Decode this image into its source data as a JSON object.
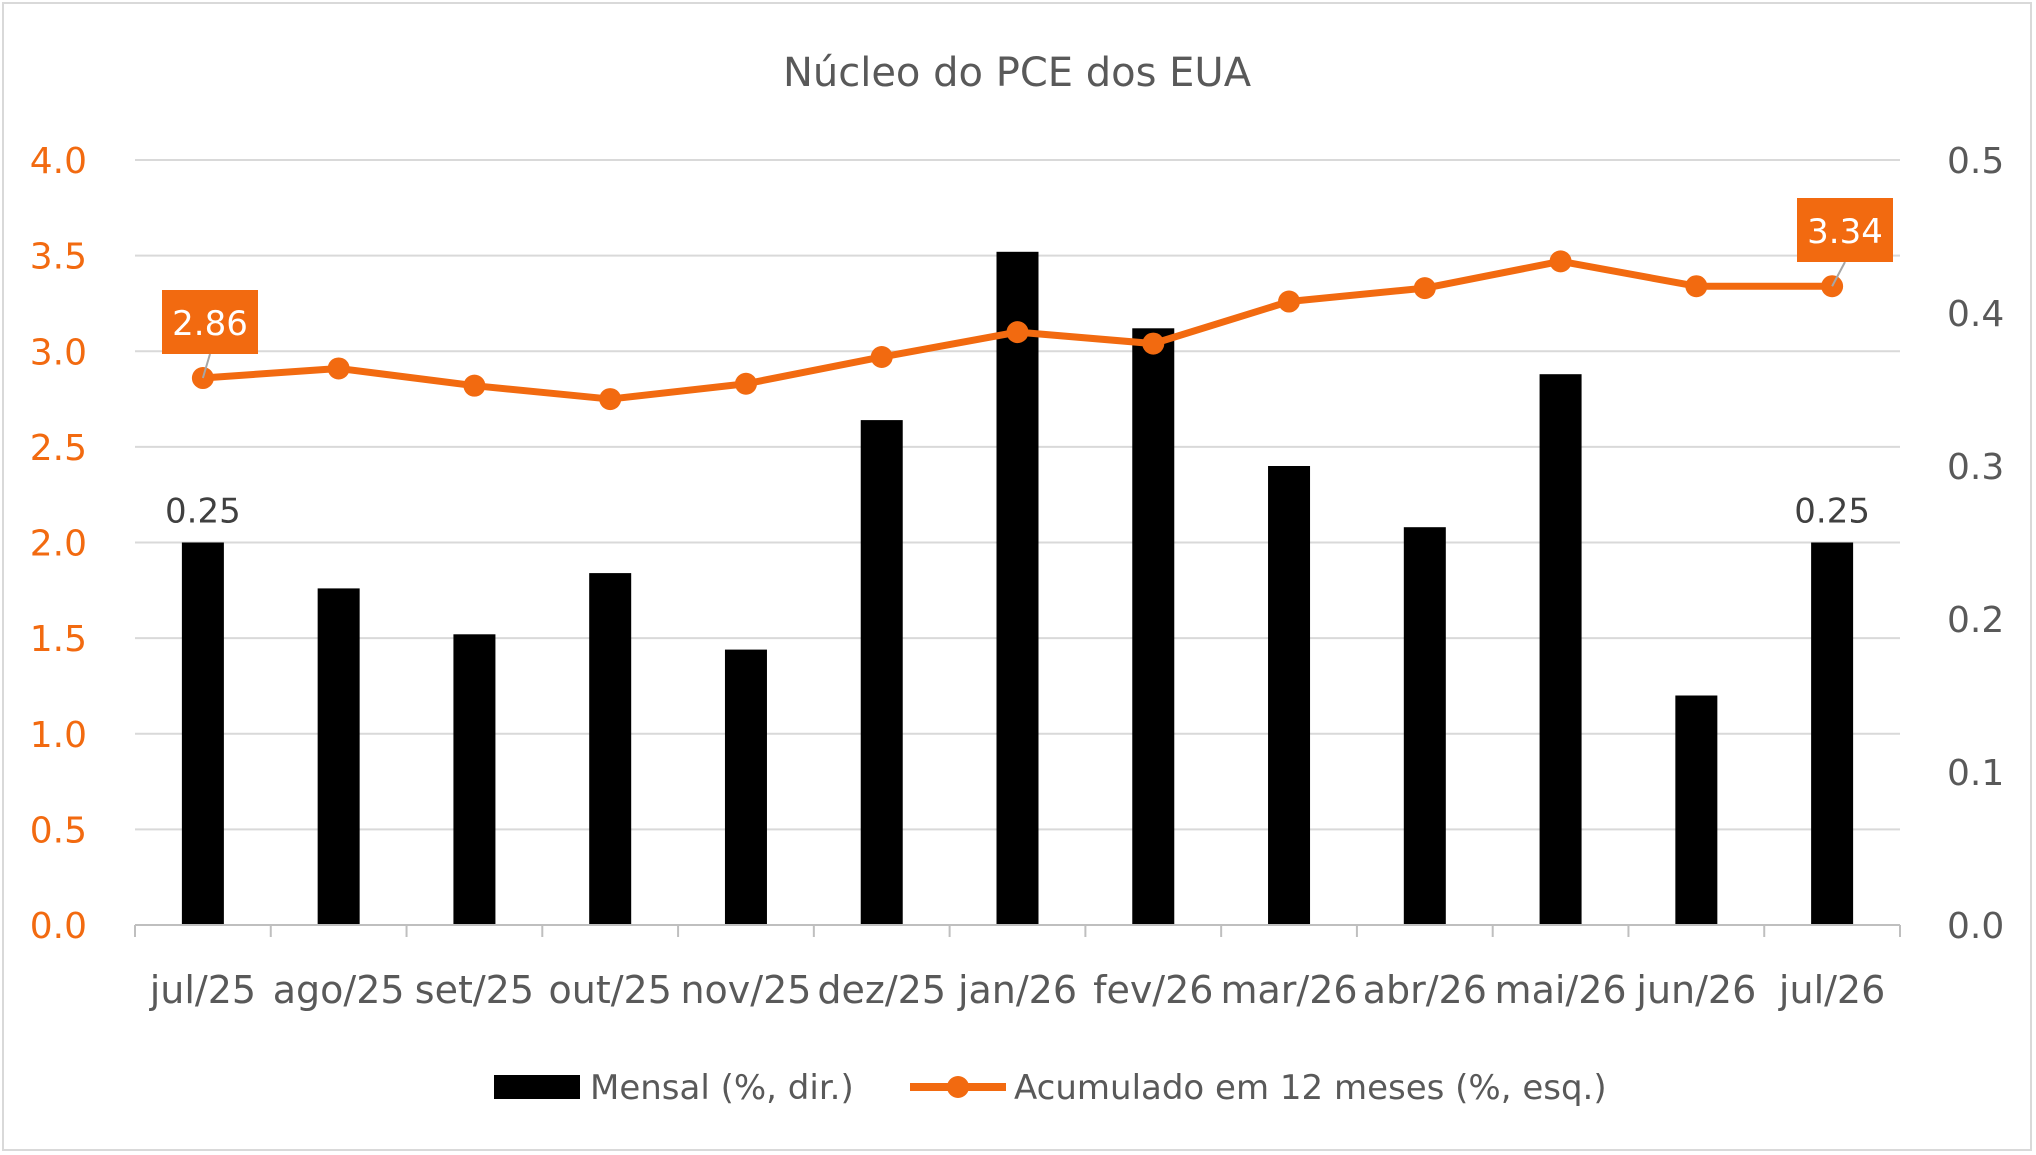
{
  "chart_data": {
    "type": "bar+line",
    "title": "Núcleo do PCE dos EUA",
    "categories": [
      "jul/25",
      "ago/25",
      "set/25",
      "out/25",
      "nov/25",
      "dez/25",
      "jan/26",
      "fev/26",
      "mar/26",
      "abr/26",
      "mai/26",
      "jun/26",
      "jul/26"
    ],
    "series": [
      {
        "name": "Mensal (%, dir.)",
        "type": "bar",
        "axis": "right",
        "color": "#000000",
        "values": [
          0.25,
          0.22,
          0.19,
          0.23,
          0.18,
          0.33,
          0.44,
          0.39,
          0.3,
          0.26,
          0.36,
          0.15,
          0.25
        ]
      },
      {
        "name": "Acumulado em 12 meses (%, esq.)",
        "type": "line",
        "axis": "left",
        "color": "#f26a10",
        "values": [
          2.86,
          2.91,
          2.82,
          2.75,
          2.83,
          2.97,
          3.1,
          3.04,
          3.26,
          3.33,
          3.47,
          3.34,
          3.34
        ]
      }
    ],
    "left_axis": {
      "ylim": [
        0,
        4
      ],
      "ticks": [
        "0.0",
        "0.5",
        "1.0",
        "1.5",
        "2.0",
        "2.5",
        "3.0",
        "3.5",
        "4.0"
      ],
      "color": "#f26a10"
    },
    "right_axis": {
      "ylim": [
        0,
        0.5
      ],
      "ticks": [
        "0.0",
        "0.1",
        "0.2",
        "0.3",
        "0.4",
        "0.5"
      ],
      "color": "#595959"
    },
    "data_labels": {
      "bar_first": "0.25",
      "bar_last": "0.25",
      "line_first": "2.86",
      "line_last": "3.34"
    },
    "grid": true,
    "legend_position": "bottom"
  }
}
